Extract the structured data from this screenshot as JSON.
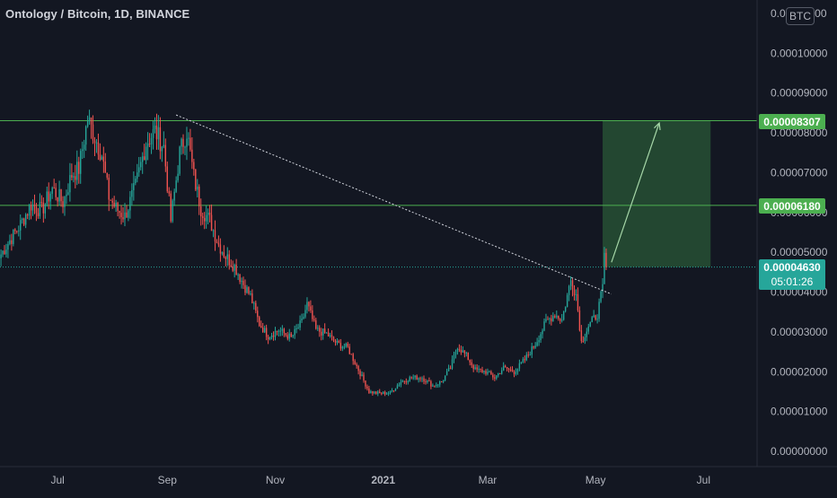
{
  "header": {
    "title": "Ontology / Bitcoin, 1D, BINANCE",
    "currency": "BTC"
  },
  "price_badges": {
    "resistance_label": "0.00008307",
    "support_label": "0.00006180",
    "current_price_label": "0.00004630",
    "countdown_label": "05:01:26"
  },
  "colors": {
    "background": "#131722",
    "up": "#26a69a",
    "down": "#ef5350",
    "level_line": "#4caf50",
    "target_zone": "#244a33",
    "current_price": "#26a69a",
    "axis_text": "#b2b5be"
  },
  "chart_data": {
    "type": "candlestick",
    "title": "Ontology / Bitcoin, 1D, BINANCE",
    "xlabel": "",
    "ylabel": "",
    "ylim": [
      0,
      0.00011
    ],
    "y_ticks": [
      "0.00000000",
      "0.00001000",
      "0.00002000",
      "0.00003000",
      "0.00004000",
      "0.00005000",
      "0.00006000",
      "0.00007000",
      "0.00008000",
      "0.00009000",
      "0.00010000",
      "0.00011000"
    ],
    "x_ticks": [
      "Jul",
      "Sep",
      "Nov",
      "2021",
      "Mar",
      "May",
      "Jul"
    ],
    "grid": false,
    "horizontal_levels": [
      8.307e-05,
      6.18e-05
    ],
    "current_price": 4.63e-05,
    "trendline": {
      "from": {
        "x": "2020-09-06",
        "y": 8.45e-05
      },
      "to": {
        "x": "2021-05-10",
        "y": 3.95e-05
      }
    },
    "target_zone": {
      "x_start": "2021-05-05",
      "x_end": "2021-07-05",
      "y_low": 4.63e-05,
      "y_high": 8.307e-05
    },
    "target_arrow": {
      "from": {
        "x": "2021-05-10",
        "y": 4.75e-05
      },
      "to": {
        "x": "2021-06-06",
        "y": 8.25e-05
      }
    },
    "series": [
      {
        "anchors": [
          [
            "2020-05-30",
            4.95e-05
          ],
          [
            "2020-06-04",
            5.3e-05
          ],
          [
            "2020-06-10",
            5.7e-05
          ],
          [
            "2020-06-16",
            6.2e-05
          ],
          [
            "2020-06-22",
            6.05e-05
          ],
          [
            "2020-06-28",
            6.6e-05
          ],
          [
            "2020-07-04",
            6.25e-05
          ],
          [
            "2020-07-09",
            6.95e-05
          ],
          [
            "2020-07-13",
            7.1e-05
          ],
          [
            "2020-07-18",
            8.35e-05
          ],
          [
            "2020-07-22",
            7.9e-05
          ],
          [
            "2020-07-26",
            7.45e-05
          ],
          [
            "2020-07-30",
            6.4e-05
          ],
          [
            "2020-08-03",
            6.1e-05
          ],
          [
            "2020-08-08",
            5.9e-05
          ],
          [
            "2020-08-14",
            6.65e-05
          ],
          [
            "2020-08-20",
            7.75e-05
          ],
          [
            "2020-08-25",
            8.05e-05
          ],
          [
            "2020-08-30",
            7.65e-05
          ],
          [
            "2020-09-03",
            5.8e-05
          ],
          [
            "2020-09-08",
            7.5e-05
          ],
          [
            "2020-09-12",
            8.05e-05
          ],
          [
            "2020-09-16",
            6.9e-05
          ],
          [
            "2020-09-20",
            6.1e-05
          ],
          [
            "2020-09-25",
            5.8e-05
          ],
          [
            "2020-09-30",
            5.2e-05
          ],
          [
            "2020-10-04",
            4.9e-05
          ],
          [
            "2020-10-09",
            4.65e-05
          ],
          [
            "2020-10-14",
            4.2e-05
          ],
          [
            "2020-10-18",
            3.9e-05
          ],
          [
            "2020-10-23",
            3.2e-05
          ],
          [
            "2020-10-28",
            2.9e-05
          ],
          [
            "2020-11-03",
            3.05e-05
          ],
          [
            "2020-11-10",
            2.85e-05
          ],
          [
            "2020-11-16",
            3.25e-05
          ],
          [
            "2020-11-19",
            3.7e-05
          ],
          [
            "2020-11-24",
            3.05e-05
          ],
          [
            "2020-11-30",
            2.95e-05
          ],
          [
            "2020-12-06",
            2.7e-05
          ],
          [
            "2020-12-12",
            2.6e-05
          ],
          [
            "2020-12-18",
            2.05e-05
          ],
          [
            "2020-12-24",
            1.5e-05
          ],
          [
            "2020-12-30",
            1.45e-05
          ],
          [
            "2021-01-05",
            1.48e-05
          ],
          [
            "2021-01-11",
            1.75e-05
          ],
          [
            "2021-01-17",
            1.85e-05
          ],
          [
            "2021-01-23",
            1.85e-05
          ],
          [
            "2021-01-29",
            1.65e-05
          ],
          [
            "2021-02-03",
            1.75e-05
          ],
          [
            "2021-02-08",
            2.1e-05
          ],
          [
            "2021-02-12",
            2.65e-05
          ],
          [
            "2021-02-17",
            2.4e-05
          ],
          [
            "2021-02-22",
            2.05e-05
          ],
          [
            "2021-02-28",
            2e-05
          ],
          [
            "2021-03-05",
            1.85e-05
          ],
          [
            "2021-03-10",
            2.1e-05
          ],
          [
            "2021-03-16",
            2e-05
          ],
          [
            "2021-03-22",
            2.3e-05
          ],
          [
            "2021-03-28",
            2.7e-05
          ],
          [
            "2021-04-03",
            3.25e-05
          ],
          [
            "2021-04-08",
            3.45e-05
          ],
          [
            "2021-04-12",
            3.3e-05
          ],
          [
            "2021-04-17",
            4.3e-05
          ],
          [
            "2021-04-20",
            3.95e-05
          ],
          [
            "2021-04-23",
            2.75e-05
          ],
          [
            "2021-04-27",
            3.15e-05
          ],
          [
            "2021-05-02",
            3.45e-05
          ],
          [
            "2021-05-05",
            4.1e-05
          ],
          [
            "2021-05-06",
            4.9e-05
          ],
          [
            "2021-05-07",
            4.63e-05
          ]
        ]
      }
    ]
  }
}
